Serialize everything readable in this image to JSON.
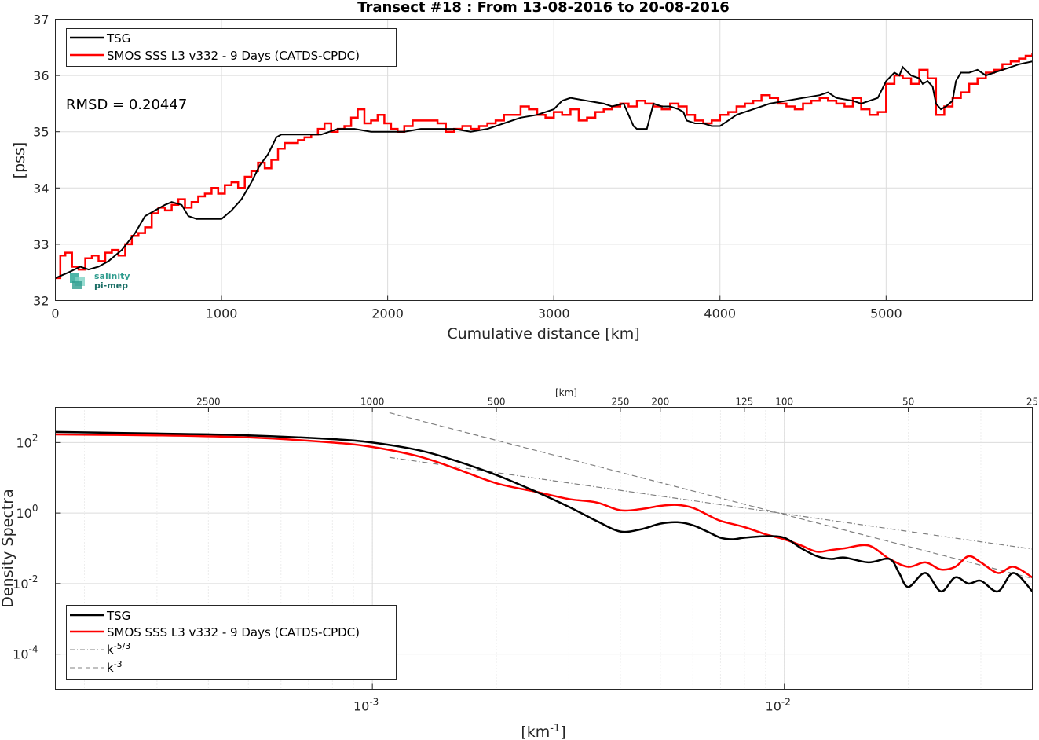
{
  "chart_data": [
    {
      "type": "line",
      "title": "Transect #18 : From 13-08-2016 to 20-08-2016",
      "xlabel": "Cumulative distance [km]",
      "ylabel": "[pss]",
      "xlim": [
        0,
        5880
      ],
      "ylim": [
        32,
        37
      ],
      "xticks": [
        "0",
        "1000",
        "2000",
        "3000",
        "4000",
        "5000"
      ],
      "yticks": [
        "32",
        "33",
        "34",
        "35",
        "36",
        "37"
      ],
      "grid": true,
      "legend_position": "top-left",
      "annotation": "RMSD = 0.20447",
      "logo": "salinity pi-mep",
      "series": [
        {
          "name": "TSG",
          "color": "#000000",
          "x": [
            0,
            80,
            150,
            200,
            260,
            320,
            400,
            480,
            540,
            600,
            660,
            700,
            760,
            800,
            850,
            900,
            1000,
            1060,
            1120,
            1180,
            1230,
            1280,
            1330,
            1360,
            1400,
            1500,
            1600,
            1700,
            1800,
            1900,
            2000,
            2100,
            2200,
            2300,
            2400,
            2500,
            2600,
            2700,
            2800,
            2900,
            3000,
            3050,
            3100,
            3200,
            3300,
            3350,
            3420,
            3450,
            3480,
            3500,
            3560,
            3600,
            3650,
            3700,
            3750,
            3780,
            3800,
            3850,
            3900,
            3950,
            4000,
            4050,
            4100,
            4150,
            4200,
            4300,
            4400,
            4500,
            4600,
            4650,
            4700,
            4800,
            4850,
            4900,
            4950,
            5000,
            5050,
            5080,
            5100,
            5150,
            5200,
            5220,
            5250,
            5280,
            5300,
            5330,
            5360,
            5400,
            5420,
            5450,
            5500,
            5550,
            5600,
            5650,
            5700,
            5750,
            5800,
            5880
          ],
          "values": [
            32.4,
            32.5,
            32.6,
            32.55,
            32.6,
            32.7,
            32.9,
            33.2,
            33.5,
            33.6,
            33.7,
            33.75,
            33.7,
            33.5,
            33.45,
            33.45,
            33.45,
            33.6,
            33.8,
            34.1,
            34.4,
            34.6,
            34.9,
            34.95,
            34.95,
            34.95,
            34.95,
            35.05,
            35.05,
            35.0,
            35.0,
            35.0,
            35.05,
            35.05,
            35.05,
            35.0,
            35.05,
            35.15,
            35.25,
            35.3,
            35.4,
            35.55,
            35.6,
            35.55,
            35.5,
            35.45,
            35.5,
            35.3,
            35.1,
            35.05,
            35.05,
            35.5,
            35.45,
            35.45,
            35.4,
            35.35,
            35.2,
            35.15,
            35.15,
            35.1,
            35.1,
            35.2,
            35.3,
            35.35,
            35.4,
            35.5,
            35.55,
            35.6,
            35.65,
            35.7,
            35.6,
            35.55,
            35.5,
            35.55,
            35.6,
            35.9,
            36.05,
            36.0,
            36.15,
            36.0,
            35.95,
            35.85,
            35.9,
            35.8,
            35.5,
            35.4,
            35.45,
            35.55,
            35.9,
            36.05,
            36.05,
            36.1,
            36.0,
            36.05,
            36.1,
            36.15,
            36.2,
            36.25
          ]
        },
        {
          "name": "SMOS SSS L3 v332 - 9 Days (CATDS-CPDC)",
          "color": "#ff0000",
          "x": [
            0,
            30,
            60,
            100,
            140,
            180,
            220,
            260,
            300,
            340,
            380,
            420,
            460,
            500,
            540,
            580,
            620,
            660,
            700,
            740,
            780,
            820,
            860,
            900,
            940,
            980,
            1020,
            1060,
            1100,
            1140,
            1180,
            1220,
            1260,
            1300,
            1340,
            1380,
            1420,
            1460,
            1500,
            1540,
            1580,
            1620,
            1660,
            1700,
            1740,
            1780,
            1820,
            1860,
            1900,
            1940,
            1980,
            2020,
            2060,
            2100,
            2150,
            2200,
            2250,
            2300,
            2350,
            2400,
            2450,
            2500,
            2550,
            2600,
            2650,
            2700,
            2750,
            2800,
            2850,
            2900,
            2950,
            3000,
            3050,
            3100,
            3150,
            3200,
            3250,
            3300,
            3350,
            3400,
            3450,
            3500,
            3550,
            3600,
            3650,
            3700,
            3750,
            3800,
            3850,
            3900,
            3950,
            4000,
            4050,
            4100,
            4150,
            4200,
            4250,
            4300,
            4350,
            4400,
            4450,
            4500,
            4550,
            4600,
            4650,
            4700,
            4750,
            4800,
            4850,
            4900,
            4950,
            5000,
            5050,
            5100,
            5150,
            5200,
            5250,
            5300,
            5350,
            5400,
            5450,
            5500,
            5550,
            5600,
            5650,
            5700,
            5750,
            5800,
            5840,
            5880
          ],
          "values": [
            32.4,
            32.8,
            32.85,
            32.6,
            32.55,
            32.75,
            32.8,
            32.7,
            32.85,
            32.9,
            32.8,
            33.0,
            33.15,
            33.2,
            33.3,
            33.55,
            33.65,
            33.6,
            33.7,
            33.8,
            33.65,
            33.75,
            33.85,
            33.9,
            34.0,
            33.9,
            34.05,
            34.1,
            34.0,
            34.2,
            34.3,
            34.45,
            34.35,
            34.5,
            34.7,
            34.8,
            34.8,
            34.85,
            34.9,
            34.95,
            35.05,
            35.15,
            35.0,
            35.05,
            35.1,
            35.25,
            35.4,
            35.15,
            35.2,
            35.3,
            35.15,
            35.05,
            35.0,
            35.1,
            35.2,
            35.2,
            35.2,
            35.15,
            35.0,
            35.05,
            35.1,
            35.05,
            35.1,
            35.15,
            35.2,
            35.3,
            35.3,
            35.45,
            35.4,
            35.3,
            35.25,
            35.35,
            35.3,
            35.4,
            35.2,
            35.25,
            35.35,
            35.4,
            35.45,
            35.5,
            35.45,
            35.55,
            35.5,
            35.45,
            35.4,
            35.5,
            35.45,
            35.3,
            35.2,
            35.15,
            35.2,
            35.3,
            35.35,
            35.45,
            35.5,
            35.55,
            35.65,
            35.6,
            35.5,
            35.45,
            35.4,
            35.5,
            35.55,
            35.6,
            35.55,
            35.5,
            35.45,
            35.6,
            35.4,
            35.3,
            35.35,
            35.85,
            36.0,
            35.95,
            35.85,
            36.1,
            35.95,
            35.3,
            35.45,
            35.6,
            35.7,
            35.85,
            35.95,
            36.05,
            36.1,
            36.2,
            36.25,
            36.3,
            36.35,
            36.4
          ]
        }
      ]
    },
    {
      "type": "line",
      "xlabel": "[km^-1]",
      "ylabel": "Density Spectra",
      "x_scale": "log",
      "y_scale": "log",
      "xlim": [
        0.00017,
        0.04
      ],
      "ylim": [
        1e-05,
        1000
      ],
      "xticks": [
        "10^-3",
        "10^-2"
      ],
      "yticks": [
        "10^-4",
        "10^-2",
        "10^0",
        "10^2"
      ],
      "top_axis_label": "[km]",
      "top_axis_ticks": [
        "2500",
        "1000",
        "500",
        "250",
        "200",
        "125",
        "100",
        "50",
        "25"
      ],
      "grid": true,
      "legend_position": "bottom-left",
      "series": [
        {
          "name": "TSG",
          "color": "#000000",
          "x": [
            0.00017,
            0.0003,
            0.0005,
            0.0008,
            0.001,
            0.0013,
            0.0016,
            0.002,
            0.0025,
            0.003,
            0.0035,
            0.004,
            0.0045,
            0.005,
            0.0055,
            0.006,
            0.0065,
            0.007,
            0.0075,
            0.008,
            0.009,
            0.01,
            0.011,
            0.012,
            0.013,
            0.014,
            0.016,
            0.018,
            0.019,
            0.02,
            0.022,
            0.024,
            0.026,
            0.028,
            0.03,
            0.033,
            0.036,
            0.04
          ],
          "values": [
            200,
            180,
            160,
            125,
            100,
            60,
            30,
            12,
            4,
            1.5,
            0.6,
            0.3,
            0.35,
            0.5,
            0.55,
            0.45,
            0.3,
            0.2,
            0.18,
            0.2,
            0.22,
            0.2,
            0.1,
            0.06,
            0.05,
            0.055,
            0.04,
            0.05,
            0.02,
            0.008,
            0.02,
            0.006,
            0.015,
            0.01,
            0.012,
            0.006,
            0.02,
            0.006
          ]
        },
        {
          "name": "SMOS SSS L3 v332 - 9 Days (CATDS-CPDC)",
          "color": "#ff0000",
          "x": [
            0.00017,
            0.0003,
            0.0005,
            0.0008,
            0.001,
            0.0013,
            0.0016,
            0.002,
            0.0025,
            0.003,
            0.0035,
            0.004,
            0.0045,
            0.005,
            0.0055,
            0.006,
            0.0065,
            0.007,
            0.008,
            0.009,
            0.01,
            0.011,
            0.012,
            0.013,
            0.014,
            0.016,
            0.018,
            0.02,
            0.022,
            0.024,
            0.026,
            0.028,
            0.03,
            0.033,
            0.036,
            0.04
          ],
          "values": [
            170,
            160,
            140,
            100,
            75,
            40,
            18,
            7,
            4,
            2.5,
            2,
            1.2,
            1.3,
            1.6,
            1.7,
            1.4,
            0.9,
            0.6,
            0.4,
            0.25,
            0.18,
            0.12,
            0.08,
            0.09,
            0.1,
            0.12,
            0.05,
            0.03,
            0.04,
            0.025,
            0.03,
            0.06,
            0.04,
            0.02,
            0.03,
            0.015
          ]
        },
        {
          "name": "k^-5/3",
          "color": "#808080",
          "style": "dash-dot",
          "x": [
            0.0011,
            0.04
          ],
          "values": [
            38,
            0.095
          ]
        },
        {
          "name": "k^-3",
          "color": "#808080",
          "style": "dashed",
          "x": [
            0.0011,
            0.04
          ],
          "values": [
            700,
            0.014
          ]
        }
      ]
    }
  ]
}
